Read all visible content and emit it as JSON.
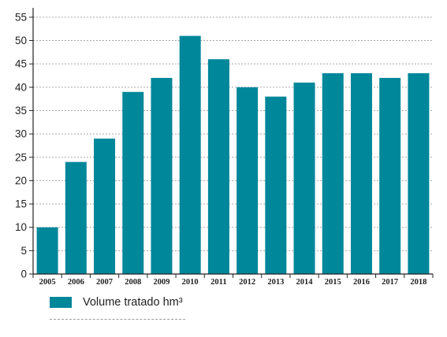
{
  "chart_data": {
    "type": "bar",
    "categories": [
      "2005",
      "2006",
      "2007",
      "2008",
      "2009",
      "2010",
      "2011",
      "2012",
      "2013",
      "2014",
      "2015",
      "2016",
      "2017",
      "2018"
    ],
    "series": [
      {
        "name": "Volume tratado hm³",
        "values": [
          10,
          24,
          29,
          39,
          42,
          51,
          46,
          40,
          38,
          41,
          43,
          43,
          42,
          43
        ],
        "color": "#00879a"
      }
    ],
    "yticks": [
      "0",
      "5",
      "10",
      "15",
      "20",
      "25",
      "30",
      "35",
      "40",
      "45",
      "50",
      "55"
    ],
    "ylim": [
      0,
      57
    ],
    "grid": true,
    "legend_position": "bottom-left"
  }
}
